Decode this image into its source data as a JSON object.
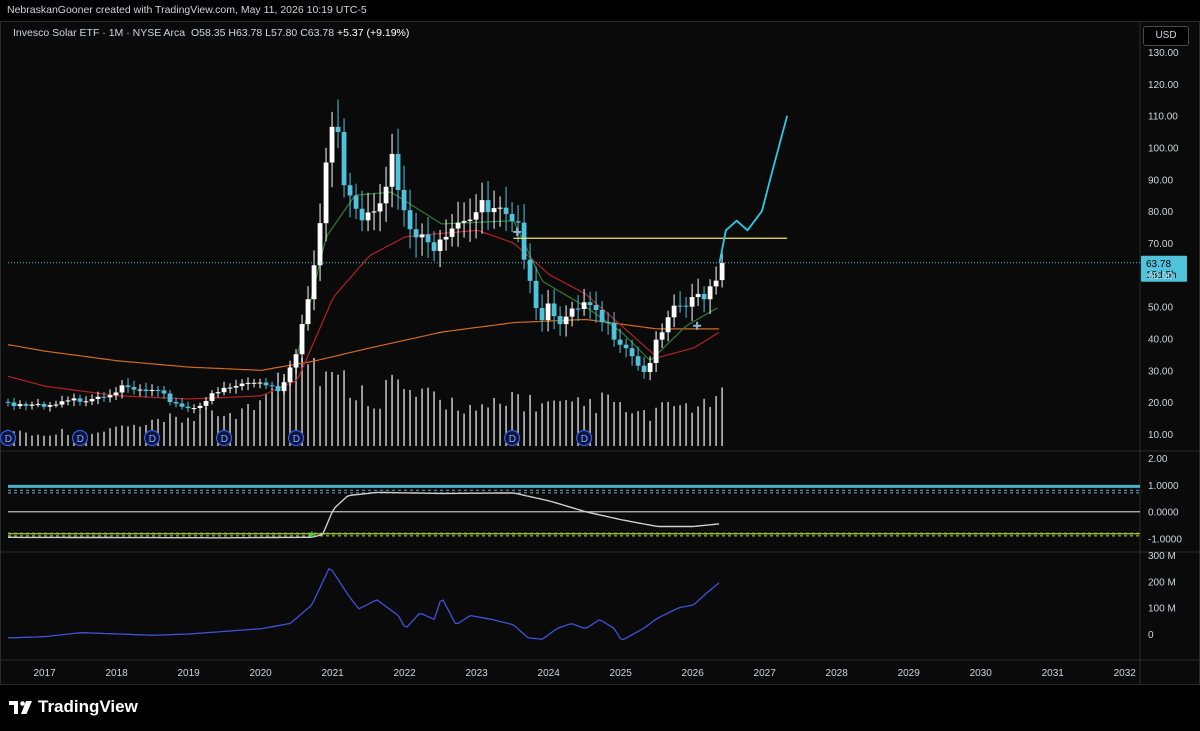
{
  "header": {
    "attribution": "NebraskanGooner created with TradingView.com, May 11, 2026 10:19 UTC-5"
  },
  "legend": {
    "symbol": "Invesco Solar ETF · 1M · NYSE Arca",
    "o_label": "O",
    "o": "58.35",
    "h_label": "H",
    "h": "63.78",
    "l_label": "L",
    "l": "57.80",
    "c_label": "C",
    "c": "63.78",
    "change": "+5.37 (+9.19%)"
  },
  "currency_button": "USD",
  "brand": "TradingView",
  "colors": {
    "background": "#000000",
    "candle_up": "#ffffff",
    "candle_down": "#4fc3dc",
    "projection": "#2ec8e8",
    "resistance": "#f5e663",
    "ma_long": "#d2691e",
    "ma_mid": "#b22222",
    "ma_short": "#2e7d32",
    "volume": "#d0d0d0",
    "indicator_line": "#cfcfcf",
    "lower_line": "#3f52d8",
    "price_tag": "#4fc3dc"
  },
  "chart_data": [
    {
      "type": "candlestick",
      "title": "Invesco Solar ETF · 1M · NYSE Arca",
      "y_axis_ticks": [
        "130.00",
        "120.00",
        "110.00",
        "100.00",
        "90.00",
        "80.00",
        "70.00",
        "60.00",
        "50.00",
        "40.00",
        "30.00",
        "20.00",
        "10.00"
      ],
      "ylim": [
        10,
        130
      ],
      "x_axis_ticks": [
        "2017",
        "2018",
        "2019",
        "2020",
        "2021",
        "2022",
        "2023",
        "2024",
        "2025",
        "2026",
        "2027",
        "2028",
        "2029",
        "2030",
        "2031",
        "2032"
      ],
      "last_price_label": "63.78",
      "countdown_label": "18d 5h",
      "close_anchors": [
        [
          2016.0,
          23
        ],
        [
          2016.5,
          20
        ],
        [
          2017.0,
          18
        ],
        [
          2017.5,
          21
        ],
        [
          2018.0,
          24
        ],
        [
          2018.5,
          23
        ],
        [
          2019.0,
          18
        ],
        [
          2019.5,
          24
        ],
        [
          2020.0,
          27
        ],
        [
          2020.25,
          24
        ],
        [
          2020.5,
          38
        ],
        [
          2020.75,
          62
        ],
        [
          2020.92,
          100
        ],
        [
          2021.0,
          108
        ],
        [
          2021.15,
          92
        ],
        [
          2021.4,
          80
        ],
        [
          2021.6,
          85
        ],
        [
          2021.8,
          96
        ],
        [
          2022.0,
          75
        ],
        [
          2022.3,
          68
        ],
        [
          2022.5,
          75
        ],
        [
          2022.8,
          80
        ],
        [
          2023.0,
          80
        ],
        [
          2023.3,
          78
        ],
        [
          2023.5,
          73
        ],
        [
          2023.6,
          72
        ],
        [
          2023.75,
          60
        ],
        [
          2023.85,
          46
        ],
        [
          2024.0,
          52
        ],
        [
          2024.2,
          45
        ],
        [
          2024.5,
          50
        ],
        [
          2024.7,
          45
        ],
        [
          2024.9,
          42
        ],
        [
          2025.0,
          40
        ],
        [
          2025.2,
          34
        ],
        [
          2025.3,
          29
        ],
        [
          2025.45,
          36
        ],
        [
          2025.6,
          43
        ],
        [
          2025.8,
          50
        ],
        [
          2025.95,
          50
        ],
        [
          2026.1,
          54
        ],
        [
          2026.25,
          57
        ],
        [
          2026.3,
          60
        ],
        [
          2026.36,
          63.78
        ]
      ],
      "resistance_line": {
        "value": 71.5,
        "x_start": 2023.5,
        "x_end": 2027.3
      },
      "ma_long_anchors": [
        [
          2016.0,
          40
        ],
        [
          2017.0,
          36
        ],
        [
          2018.0,
          33
        ],
        [
          2019.0,
          31
        ],
        [
          2020.0,
          30
        ],
        [
          2020.75,
          33
        ],
        [
          2021.5,
          37
        ],
        [
          2022.5,
          42
        ],
        [
          2023.5,
          45
        ],
        [
          2024.5,
          46
        ],
        [
          2025.5,
          43
        ],
        [
          2026.36,
          43
        ]
      ],
      "ma_mid_anchors": [
        [
          2016.0,
          31
        ],
        [
          2017.0,
          25
        ],
        [
          2018.0,
          22
        ],
        [
          2019.0,
          21
        ],
        [
          2020.0,
          22
        ],
        [
          2020.5,
          27
        ],
        [
          2021.0,
          53
        ],
        [
          2021.5,
          66
        ],
        [
          2022.0,
          72
        ],
        [
          2022.5,
          73
        ],
        [
          2023.0,
          74
        ],
        [
          2023.5,
          70
        ],
        [
          2024.0,
          60
        ],
        [
          2024.5,
          54
        ],
        [
          2025.0,
          44
        ],
        [
          2025.5,
          34
        ],
        [
          2026.0,
          37
        ],
        [
          2026.36,
          42
        ]
      ],
      "ma_short_anchors": [
        [
          2020.5,
          35
        ],
        [
          2020.9,
          72
        ],
        [
          2021.3,
          85
        ],
        [
          2021.8,
          86
        ],
        [
          2022.5,
          76
        ],
        [
          2023.5,
          77
        ],
        [
          2023.9,
          58
        ],
        [
          2024.5,
          50
        ],
        [
          2025.0,
          42
        ],
        [
          2025.4,
          33
        ],
        [
          2025.9,
          44
        ],
        [
          2026.36,
          50
        ]
      ],
      "projection": [
        [
          2026.36,
          63.78
        ],
        [
          2026.45,
          74
        ],
        [
          2026.6,
          77
        ],
        [
          2026.75,
          74
        ],
        [
          2026.95,
          80
        ],
        [
          2027.1,
          93
        ],
        [
          2027.3,
          110
        ]
      ],
      "volume_relative": [
        0.15,
        0.12,
        0.1,
        0.13,
        0.14,
        0.1,
        0.12,
        0.15,
        0.18,
        0.17,
        0.2,
        0.22,
        0.25,
        0.28,
        0.3,
        0.28,
        0.33,
        0.35,
        0.38,
        0.55,
        0.85,
        1.0,
        0.8,
        0.7,
        0.62,
        0.55,
        0.5,
        0.45,
        0.6,
        0.5,
        0.47,
        0.45,
        0.42,
        0.4,
        0.35,
        0.33,
        0.38,
        0.48,
        0.42,
        0.4,
        0.38,
        0.36,
        0.38,
        0.4,
        0.42,
        0.35,
        0.3,
        0.28,
        0.34,
        0.38,
        0.4,
        0.36,
        0.42,
        0.45
      ],
      "dividend_marker_years": [
        2016.45,
        2017.45,
        2018.45,
        2019.45,
        2020.45,
        2023.45,
        2024.45
      ],
      "dividend_marker_label": "D"
    },
    {
      "type": "line",
      "y_axis_ticks": [
        "2.00",
        "1.0000",
        "0.0000",
        "-1.0000"
      ],
      "ylim": [
        -1.35,
        2.0
      ],
      "bands": [
        0.8,
        0.7,
        -0.8,
        -0.9
      ],
      "series": [
        {
          "anchors": [
            [
              2016.0,
              -0.95
            ],
            [
              2019.5,
              -0.97
            ],
            [
              2020.7,
              -0.95
            ],
            [
              2020.85,
              -0.85
            ],
            [
              2021.0,
              0.1
            ],
            [
              2021.2,
              0.6
            ],
            [
              2021.6,
              0.72
            ],
            [
              2022.5,
              0.68
            ],
            [
              2023.5,
              0.7
            ],
            [
              2024.0,
              0.4
            ],
            [
              2024.5,
              0.0
            ],
            [
              2025.0,
              -0.3
            ],
            [
              2025.5,
              -0.55
            ],
            [
              2026.0,
              -0.55
            ],
            [
              2026.36,
              -0.45
            ]
          ]
        }
      ],
      "cross_marker_year": 2020.7
    },
    {
      "type": "line",
      "y_axis_ticks": [
        "300 M",
        "200 M",
        "100 M",
        "0"
      ],
      "ylim": [
        -80,
        300
      ],
      "series": [
        {
          "anchors": [
            [
              2016.0,
              -10
            ],
            [
              2016.5,
              -15
            ],
            [
              2017.0,
              -10
            ],
            [
              2017.5,
              5
            ],
            [
              2018.0,
              0
            ],
            [
              2018.5,
              -5
            ],
            [
              2019.0,
              0
            ],
            [
              2019.5,
              10
            ],
            [
              2020.0,
              20
            ],
            [
              2020.4,
              40
            ],
            [
              2020.7,
              110
            ],
            [
              2020.95,
              255
            ],
            [
              2021.2,
              150
            ],
            [
              2021.35,
              95
            ],
            [
              2021.6,
              130
            ],
            [
              2021.9,
              70
            ],
            [
              2022.0,
              20
            ],
            [
              2022.2,
              80
            ],
            [
              2022.4,
              55
            ],
            [
              2022.5,
              140
            ],
            [
              2022.7,
              35
            ],
            [
              2022.9,
              70
            ],
            [
              2023.2,
              55
            ],
            [
              2023.5,
              35
            ],
            [
              2023.7,
              -15
            ],
            [
              2023.9,
              -20
            ],
            [
              2024.1,
              20
            ],
            [
              2024.3,
              40
            ],
            [
              2024.5,
              20
            ],
            [
              2024.7,
              55
            ],
            [
              2024.9,
              20
            ],
            [
              2025.0,
              -25
            ],
            [
              2025.3,
              20
            ],
            [
              2025.5,
              60
            ],
            [
              2025.8,
              100
            ],
            [
              2026.0,
              110
            ],
            [
              2026.2,
              160
            ],
            [
              2026.36,
              195
            ]
          ]
        }
      ]
    }
  ]
}
